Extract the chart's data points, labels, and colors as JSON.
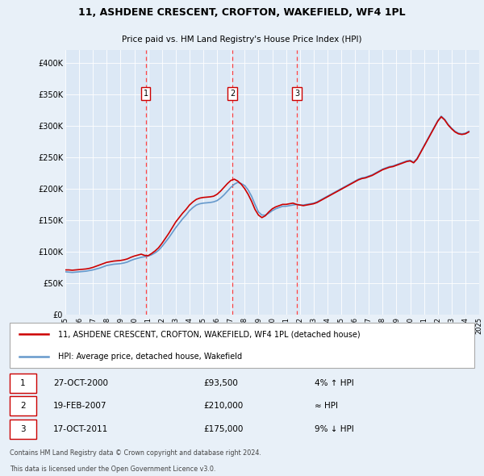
{
  "title": "11, ASHDENE CRESCENT, CROFTON, WAKEFIELD, WF4 1PL",
  "subtitle": "Price paid vs. HM Land Registry's House Price Index (HPI)",
  "legend_label_red": "11, ASHDENE CRESCENT, CROFTON, WAKEFIELD, WF4 1PL (detached house)",
  "legend_label_blue": "HPI: Average price, detached house, Wakefield",
  "footnote1": "Contains HM Land Registry data © Crown copyright and database right 2024.",
  "footnote2": "This data is licensed under the Open Government Licence v3.0.",
  "transactions": [
    {
      "num": 1,
      "date": "27-OCT-2000",
      "price": 93500,
      "rel": "4% ↑ HPI"
    },
    {
      "num": 2,
      "date": "19-FEB-2007",
      "price": 210000,
      "rel": "≈ HPI"
    },
    {
      "num": 3,
      "date": "17-OCT-2011",
      "price": 175000,
      "rel": "9% ↓ HPI"
    }
  ],
  "transaction_dates_decimal": [
    2000.82,
    2007.12,
    2011.79
  ],
  "transaction_prices": [
    93500,
    210000,
    175000
  ],
  "ylim": [
    0,
    420000
  ],
  "yticks": [
    0,
    50000,
    100000,
    150000,
    200000,
    250000,
    300000,
    350000,
    400000
  ],
  "ytick_labels": [
    "£0",
    "£50K",
    "£100K",
    "£150K",
    "£200K",
    "£250K",
    "£300K",
    "£350K",
    "£400K"
  ],
  "background_color": "#e8f0f8",
  "plot_bg_color": "#dce8f5",
  "red_color": "#cc0000",
  "blue_color": "#6699cc",
  "vline_color": "#ff4444",
  "hpi_data": {
    "dates": [
      1995.0,
      1995.25,
      1995.5,
      1995.75,
      1996.0,
      1996.25,
      1996.5,
      1996.75,
      1997.0,
      1997.25,
      1997.5,
      1997.75,
      1998.0,
      1998.25,
      1998.5,
      1998.75,
      1999.0,
      1999.25,
      1999.5,
      1999.75,
      2000.0,
      2000.25,
      2000.5,
      2000.75,
      2001.0,
      2001.25,
      2001.5,
      2001.75,
      2002.0,
      2002.25,
      2002.5,
      2002.75,
      2003.0,
      2003.25,
      2003.5,
      2003.75,
      2004.0,
      2004.25,
      2004.5,
      2004.75,
      2005.0,
      2005.25,
      2005.5,
      2005.75,
      2006.0,
      2006.25,
      2006.5,
      2006.75,
      2007.0,
      2007.25,
      2007.5,
      2007.75,
      2008.0,
      2008.25,
      2008.5,
      2008.75,
      2009.0,
      2009.25,
      2009.5,
      2009.75,
      2010.0,
      2010.25,
      2010.5,
      2010.75,
      2011.0,
      2011.25,
      2011.5,
      2011.75,
      2012.0,
      2012.25,
      2012.5,
      2012.75,
      2013.0,
      2013.25,
      2013.5,
      2013.75,
      2014.0,
      2014.25,
      2014.5,
      2014.75,
      2015.0,
      2015.25,
      2015.5,
      2015.75,
      2016.0,
      2016.25,
      2016.5,
      2016.75,
      2017.0,
      2017.25,
      2017.5,
      2017.75,
      2018.0,
      2018.25,
      2018.5,
      2018.75,
      2019.0,
      2019.25,
      2019.5,
      2019.75,
      2020.0,
      2020.25,
      2020.5,
      2020.75,
      2021.0,
      2021.25,
      2021.5,
      2021.75,
      2022.0,
      2022.25,
      2022.5,
      2022.75,
      2023.0,
      2023.25,
      2023.5,
      2023.75,
      2024.0,
      2024.25
    ],
    "values": [
      68000,
      67500,
      67000,
      67500,
      68000,
      68500,
      69000,
      70000,
      71000,
      72500,
      74000,
      76000,
      78000,
      79000,
      80000,
      80500,
      81000,
      82000,
      83500,
      86000,
      88000,
      89500,
      91000,
      92000,
      93000,
      95000,
      98000,
      102000,
      108000,
      115000,
      122000,
      130000,
      138000,
      145000,
      152000,
      158000,
      165000,
      170000,
      174000,
      176000,
      177000,
      177500,
      178000,
      179000,
      181000,
      185000,
      190000,
      196000,
      202000,
      207000,
      210000,
      208000,
      205000,
      198000,
      188000,
      175000,
      163000,
      158000,
      158000,
      161000,
      165000,
      168000,
      170000,
      172000,
      172000,
      173000,
      174000,
      175000,
      174000,
      174000,
      175000,
      176000,
      177000,
      179000,
      182000,
      185000,
      188000,
      191000,
      194000,
      197000,
      200000,
      203000,
      206000,
      209000,
      212000,
      215000,
      217000,
      218000,
      220000,
      222000,
      225000,
      228000,
      231000,
      233000,
      235000,
      236000,
      238000,
      240000,
      242000,
      244000,
      245000,
      242000,
      248000,
      258000,
      268000,
      278000,
      288000,
      298000,
      308000,
      315000,
      310000,
      302000,
      296000,
      291000,
      288000,
      287000,
      288000,
      291000
    ]
  },
  "red_data": {
    "dates": [
      1995.0,
      1995.25,
      1995.5,
      1995.75,
      1996.0,
      1996.25,
      1996.5,
      1996.75,
      1997.0,
      1997.25,
      1997.5,
      1997.75,
      1998.0,
      1998.25,
      1998.5,
      1998.75,
      1999.0,
      1999.25,
      1999.5,
      1999.75,
      2000.0,
      2000.25,
      2000.5,
      2000.75,
      2001.0,
      2001.25,
      2001.5,
      2001.75,
      2002.0,
      2002.25,
      2002.5,
      2002.75,
      2003.0,
      2003.25,
      2003.5,
      2003.75,
      2004.0,
      2004.25,
      2004.5,
      2004.75,
      2005.0,
      2005.25,
      2005.5,
      2005.75,
      2006.0,
      2006.25,
      2006.5,
      2006.75,
      2007.0,
      2007.25,
      2007.5,
      2007.75,
      2008.0,
      2008.25,
      2008.5,
      2008.75,
      2009.0,
      2009.25,
      2009.5,
      2009.75,
      2010.0,
      2010.25,
      2010.5,
      2010.75,
      2011.0,
      2011.25,
      2011.5,
      2011.75,
      2012.0,
      2012.25,
      2012.5,
      2012.75,
      2013.0,
      2013.25,
      2013.5,
      2013.75,
      2014.0,
      2014.25,
      2014.5,
      2014.75,
      2015.0,
      2015.25,
      2015.5,
      2015.75,
      2016.0,
      2016.25,
      2016.5,
      2016.75,
      2017.0,
      2017.25,
      2017.5,
      2017.75,
      2018.0,
      2018.25,
      2018.5,
      2018.75,
      2019.0,
      2019.25,
      2019.5,
      2019.75,
      2020.0,
      2020.25,
      2020.5,
      2020.75,
      2021.0,
      2021.25,
      2021.5,
      2021.75,
      2022.0,
      2022.25,
      2022.5,
      2022.75,
      2023.0,
      2023.25,
      2023.5,
      2023.75,
      2024.0,
      2024.25
    ],
    "values": [
      71000,
      71000,
      70500,
      71000,
      71500,
      72000,
      72500,
      73500,
      75000,
      77000,
      79000,
      81000,
      83000,
      84000,
      85000,
      85500,
      86000,
      87000,
      88500,
      91000,
      93000,
      94500,
      96000,
      94000,
      93500,
      97000,
      101000,
      106000,
      113000,
      121000,
      129000,
      138000,
      147000,
      154000,
      161000,
      167000,
      174000,
      179000,
      183000,
      185000,
      186000,
      186500,
      187000,
      188000,
      191000,
      196000,
      202000,
      208000,
      213000,
      215000,
      212000,
      207000,
      200000,
      191000,
      180000,
      167000,
      158000,
      154000,
      157000,
      163000,
      168000,
      171000,
      173000,
      175000,
      175000,
      176000,
      177000,
      175000,
      174000,
      173000,
      174000,
      175000,
      176000,
      178000,
      181000,
      184000,
      187000,
      190000,
      193000,
      196000,
      199000,
      202000,
      205000,
      208000,
      211000,
      214000,
      216000,
      217000,
      219000,
      221000,
      224000,
      227000,
      230000,
      232000,
      234000,
      235000,
      237000,
      239000,
      241000,
      243000,
      244000,
      241000,
      247000,
      257000,
      267000,
      277000,
      287000,
      297000,
      307000,
      314000,
      309000,
      301000,
      295000,
      290000,
      287000,
      286000,
      287000,
      290000
    ]
  }
}
